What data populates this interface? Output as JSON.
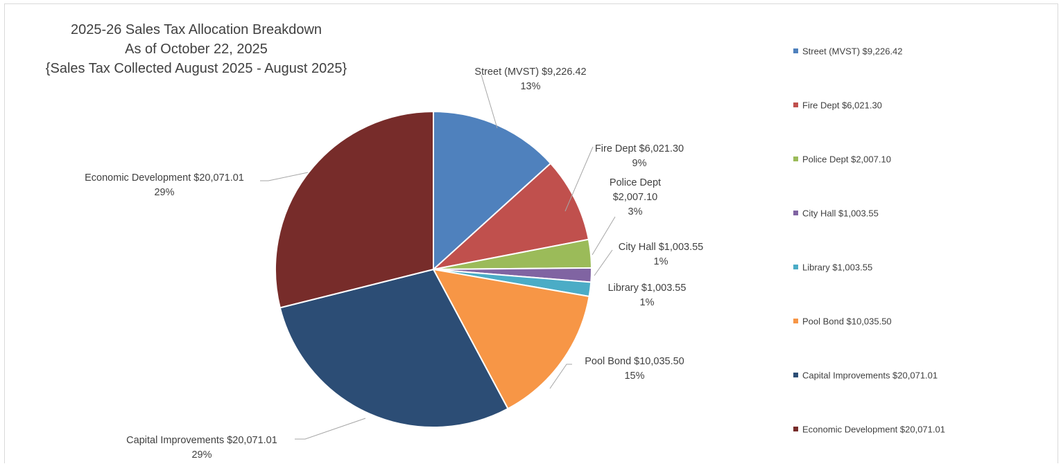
{
  "chart_data": {
    "type": "pie",
    "title_lines": [
      "2025-26 Sales Tax Allocation Breakdown",
      "As of October 22, 2025",
      "{Sales Tax Collected August 2025 - August 2025}"
    ],
    "legend_position": "right",
    "slices": [
      {
        "label": "Street (MVST)",
        "amount": "$9,226.42",
        "value": 9226.42,
        "percent": "13%",
        "color": "#4F81BD"
      },
      {
        "label": "Fire Dept",
        "amount": "$6,021.30",
        "value": 6021.3,
        "percent": "9%",
        "color": "#C0504D"
      },
      {
        "label": "Police Dept",
        "amount": "$2,007.10",
        "value": 2007.1,
        "percent": "3%",
        "color": "#9BBB59"
      },
      {
        "label": "City Hall",
        "amount": "$1,003.55",
        "value": 1003.55,
        "percent": "1%",
        "color": "#8064A2"
      },
      {
        "label": "Library",
        "amount": "$1,003.55",
        "value": 1003.55,
        "percent": "1%",
        "color": "#4BACC6"
      },
      {
        "label": "Pool Bond",
        "amount": "$10,035.50",
        "value": 10035.5,
        "percent": "15%",
        "color": "#F79646"
      },
      {
        "label": "Capital Improvements",
        "amount": "$20,071.01",
        "value": 20071.01,
        "percent": "29%",
        "color": "#2C4D75"
      },
      {
        "label": "Economic Development",
        "amount": "$20,071.01",
        "value": 20071.01,
        "percent": "29%",
        "color": "#772C2A"
      }
    ]
  }
}
